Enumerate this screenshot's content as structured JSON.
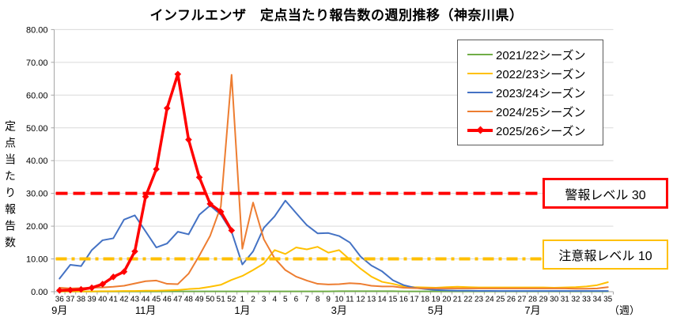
{
  "chart_data": {
    "type": "line",
    "title": "インフルエンザ　定点当たり報告数の週別推移（神奈川県）",
    "ylabel": "定点当たり報告数",
    "x_unit_label": "（週）",
    "ylim": [
      0,
      80
    ],
    "y_tick_step": 10,
    "y_tick_decimals": 2,
    "grid": true,
    "legend_position": "upper right",
    "categories": [
      "36",
      "37",
      "38",
      "39",
      "40",
      "41",
      "42",
      "43",
      "44",
      "45",
      "46",
      "47",
      "48",
      "49",
      "50",
      "51",
      "52",
      "1",
      "2",
      "3",
      "4",
      "5",
      "6",
      "7",
      "8",
      "9",
      "10",
      "11",
      "12",
      "13",
      "14",
      "15",
      "16",
      "17",
      "18",
      "19",
      "20",
      "21",
      "22",
      "23",
      "24",
      "25",
      "26",
      "27",
      "28",
      "29",
      "30",
      "31",
      "32",
      "33",
      "34",
      "35"
    ],
    "month_labels": [
      {
        "label": "9月",
        "week_index": 0
      },
      {
        "label": "11月",
        "week_index": 8
      },
      {
        "label": "1月",
        "week_index": 17
      },
      {
        "label": "3月",
        "week_index": 26
      },
      {
        "label": "5月",
        "week_index": 35
      },
      {
        "label": "7月",
        "week_index": 44
      }
    ],
    "series": [
      {
        "name": "2021/22シーズン",
        "color": "#70AD47",
        "line_width": 2,
        "marker": "none",
        "values": [
          0.05,
          0.05,
          0.05,
          0.05,
          0.05,
          0.05,
          0.05,
          0.05,
          0.05,
          0.05,
          0.1,
          0.1,
          0.1,
          0.1,
          0.1,
          0.1,
          0.1,
          0.1,
          0.1,
          0.1,
          0.1,
          0.1,
          0.1,
          0.1,
          0.1,
          0.1,
          0.15,
          0.15,
          0.15,
          0.15,
          0.15,
          0.15,
          0.1,
          0.1,
          0.1,
          0.1,
          0.1,
          0.1,
          0.1,
          0.1,
          0.1,
          0.1,
          0.1,
          0.1,
          0.1,
          0.1,
          0.1,
          0.1,
          0.1,
          0.1,
          0.1,
          0.1
        ]
      },
      {
        "name": "2022/23シーズン",
        "color": "#FFC000",
        "line_width": 2,
        "marker": "none",
        "values": [
          0.1,
          0.1,
          0.1,
          0.1,
          0.15,
          0.15,
          0.2,
          0.2,
          0.3,
          0.3,
          0.4,
          0.5,
          0.8,
          1.0,
          1.5,
          2.1,
          3.6,
          4.8,
          6.6,
          8.6,
          12.7,
          11.5,
          13.5,
          12.9,
          13.7,
          11.9,
          12.7,
          9.8,
          7.0,
          4.6,
          3.0,
          2.4,
          1.6,
          1.4,
          1.3,
          1.2,
          1.4,
          1.5,
          1.4,
          1.3,
          1.3,
          1.3,
          1.3,
          1.3,
          1.3,
          1.3,
          1.2,
          1.3,
          1.4,
          1.6,
          2.0,
          2.9
        ]
      },
      {
        "name": "2023/24シーズン",
        "color": "#4472C4",
        "line_width": 2,
        "marker": "none",
        "values": [
          4.0,
          8.2,
          7.8,
          12.7,
          15.7,
          16.3,
          22.0,
          23.3,
          18.4,
          13.5,
          14.7,
          18.3,
          17.5,
          23.5,
          26.3,
          23.5,
          18.3,
          8.3,
          12.3,
          19.5,
          23.0,
          27.8,
          24.0,
          20.3,
          17.8,
          17.9,
          17.0,
          15.0,
          10.7,
          8.0,
          6.2,
          3.5,
          2.0,
          1.2,
          0.8,
          0.5,
          0.4,
          0.3,
          0.3,
          0.25,
          0.25,
          0.2,
          0.2,
          0.2,
          0.2,
          0.2,
          0.2,
          0.2,
          0.2,
          0.2,
          0.2,
          0.2
        ]
      },
      {
        "name": "2024/25シーズン",
        "color": "#ED7D31",
        "line_width": 2,
        "marker": "none",
        "values": [
          1.2,
          1.0,
          1.1,
          1.2,
          1.3,
          1.5,
          1.8,
          2.5,
          3.2,
          3.4,
          2.4,
          2.3,
          5.5,
          11.0,
          17.0,
          26.0,
          66.2,
          13.1,
          27.2,
          16.0,
          10.2,
          6.6,
          4.6,
          3.4,
          2.4,
          2.2,
          2.3,
          2.6,
          2.4,
          1.8,
          1.6,
          1.6,
          1.2,
          1.1,
          1.0,
          1.0,
          1.0,
          1.0,
          1.0,
          1.0,
          1.0,
          1.0,
          1.0,
          1.0,
          1.0,
          1.0,
          1.0,
          1.0,
          0.9,
          0.9,
          1.0,
          1.4
        ]
      },
      {
        "name": "2025/26シーズン",
        "color": "#FF0000",
        "line_width": 3.5,
        "marker": "diamond",
        "values": [
          0.4,
          0.5,
          0.7,
          1.2,
          2.3,
          4.5,
          6.1,
          12.3,
          29.0,
          37.4,
          56.0,
          66.4,
          46.4,
          34.9,
          26.8,
          24.4,
          18.7
        ]
      }
    ],
    "thresholds": [
      {
        "label": "警報レベル 30",
        "value": 30,
        "color": "#FF0000",
        "style": "dashed"
      },
      {
        "label": "注意報レベル 10",
        "value": 10,
        "color": "#FFC000",
        "style": "dash-dot"
      }
    ]
  }
}
